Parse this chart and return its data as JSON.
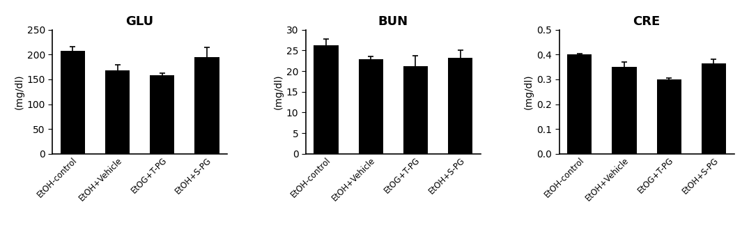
{
  "panels": [
    {
      "title": "GLU",
      "ylabel": "(mg/dl)",
      "ylim": [
        0,
        250
      ],
      "yticks": [
        0,
        50,
        100,
        150,
        200,
        250
      ],
      "values": [
        208,
        168,
        158,
        195
      ],
      "errors": [
        8,
        12,
        5,
        20
      ],
      "categories": [
        "EtOH-control",
        "EtOH+Vehicle",
        "EtOG+T-PG",
        "EtOH+S-PG"
      ]
    },
    {
      "title": "BUN",
      "ylabel": "(mg/dl)",
      "ylim": [
        0,
        30
      ],
      "yticks": [
        0,
        5,
        10,
        15,
        20,
        25,
        30
      ],
      "values": [
        26.2,
        22.8,
        21.2,
        23.2
      ],
      "errors": [
        1.5,
        0.8,
        2.5,
        1.8
      ],
      "categories": [
        "EtOH-control",
        "EtOH+Vehicle",
        "EtOG+T-PG",
        "EtOH+S-PG"
      ]
    },
    {
      "title": "CRE",
      "ylabel": "(mg/dl)",
      "ylim": [
        0.0,
        0.5
      ],
      "yticks": [
        0.0,
        0.1,
        0.2,
        0.3,
        0.4,
        0.5
      ],
      "values": [
        0.4,
        0.35,
        0.3,
        0.365
      ],
      "errors": [
        0.005,
        0.02,
        0.005,
        0.015
      ],
      "categories": [
        "EtOH-control",
        "EtOH+Vehicle",
        "EtOG+T-PG",
        "EtOH+S-PG"
      ]
    }
  ],
  "bar_color": "#000000",
  "bar_width": 0.55,
  "title_fontsize": 13,
  "label_fontsize": 10,
  "tick_fontsize": 10,
  "xtick_fontsize": 8.5,
  "background_color": "#ffffff",
  "capsize": 3
}
